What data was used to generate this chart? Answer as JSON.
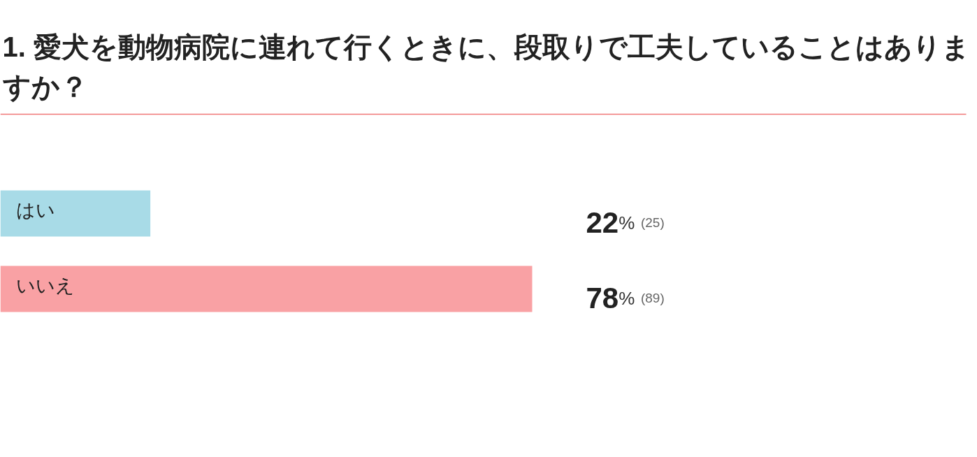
{
  "chart_data": {
    "type": "bar",
    "orientation": "horizontal",
    "title": "1. 愛犬を動物病院に連れて行くときに、段取りで工夫していることはありますか？",
    "categories": [
      "はい",
      "いいえ"
    ],
    "values": [
      22,
      78
    ],
    "colors": [
      "#a8dbe7",
      "#f9a1a4"
    ],
    "value_labels": [
      "22% (25)",
      "78% (89)"
    ],
    "tick_labels": false,
    "grid": false
  }
}
